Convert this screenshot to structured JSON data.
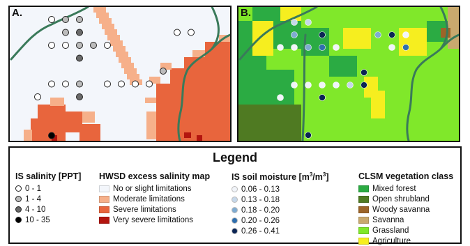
{
  "panel_a": {
    "label": "A.",
    "background_color": "#f3f6fb",
    "river_color": "#3a7a5a",
    "salinity_points": [
      {
        "col": 0,
        "row": 0,
        "class": 0
      },
      {
        "col": 1,
        "row": 0,
        "class": 1
      },
      {
        "col": 2,
        "row": 0,
        "class": 1
      },
      {
        "col": 1,
        "row": 1,
        "class": 1
      },
      {
        "col": 2,
        "row": 1,
        "class": 2
      },
      {
        "col": 0,
        "row": 2,
        "class": 0
      },
      {
        "col": 1,
        "row": 2,
        "class": 0
      },
      {
        "col": 2,
        "row": 2,
        "class": 1
      },
      {
        "col": 3,
        "row": 2,
        "class": 1
      },
      {
        "col": 4,
        "row": 2,
        "class": 0
      },
      {
        "col": 2,
        "row": 3,
        "class": 2
      },
      {
        "col": 0,
        "row": 5,
        "class": 0
      },
      {
        "col": 1,
        "row": 5,
        "class": 0
      },
      {
        "col": 2,
        "row": 5,
        "class": 1
      },
      {
        "col": 4,
        "row": 5,
        "class": 0
      },
      {
        "col": 5,
        "row": 5,
        "class": 0
      },
      {
        "col": 6,
        "row": 5,
        "class": 0
      },
      {
        "col": 7,
        "row": 5,
        "class": 0
      },
      {
        "col": 8,
        "row": 4,
        "class": 1
      },
      {
        "col": 9,
        "row": 1,
        "class": 0
      },
      {
        "col": 10,
        "row": 1,
        "class": 0
      },
      {
        "col": -1,
        "row": 6,
        "class": 0
      },
      {
        "col": 2,
        "row": 6,
        "class": 2
      },
      {
        "col": 0,
        "row": 9,
        "class": 3
      }
    ]
  },
  "panel_b": {
    "label": "B.",
    "moisture_points": [
      {
        "col": 1,
        "row": 0,
        "class": 1
      },
      {
        "col": 2,
        "row": 0,
        "class": 1
      },
      {
        "col": 1,
        "row": 1,
        "class": 2
      },
      {
        "col": 3,
        "row": 1,
        "class": 4
      },
      {
        "col": 3,
        "row": 2,
        "class": 3
      },
      {
        "col": 4,
        "row": 2,
        "class": 0
      },
      {
        "col": 0,
        "row": 2,
        "class": 0
      },
      {
        "col": 1,
        "row": 2,
        "class": 0
      },
      {
        "col": 2,
        "row": 2,
        "class": 2
      },
      {
        "col": 7,
        "row": 1,
        "class": 2
      },
      {
        "col": 8,
        "row": 1,
        "class": 4
      },
      {
        "col": 9,
        "row": 1,
        "class": 0
      },
      {
        "col": 8,
        "row": 2,
        "class": 0
      },
      {
        "col": 9,
        "row": 2,
        "class": 3
      },
      {
        "col": 6,
        "row": 4,
        "class": 4
      },
      {
        "col": 1,
        "row": 5,
        "class": 0
      },
      {
        "col": 2,
        "row": 5,
        "class": 0
      },
      {
        "col": 3,
        "row": 5,
        "class": 0
      },
      {
        "col": 4,
        "row": 5,
        "class": 0
      },
      {
        "col": 5,
        "row": 5,
        "class": 1
      },
      {
        "col": 6,
        "row": 5,
        "class": 4
      },
      {
        "col": 0,
        "row": 6,
        "class": 0
      },
      {
        "col": 3,
        "row": 6,
        "class": 4
      },
      {
        "col": 2,
        "row": 9,
        "class": 4
      }
    ]
  },
  "legend": {
    "title": "Legend",
    "salinity": {
      "heading": "IS salinity [PPT]",
      "items": [
        {
          "label": "0 - 1",
          "color": "#ffffff"
        },
        {
          "label": "1 - 4",
          "color": "#bcbcbc"
        },
        {
          "label": "4 - 10",
          "color": "#6a6a6a"
        },
        {
          "label": "10 - 35",
          "color": "#000000"
        }
      ]
    },
    "hwsd": {
      "heading": "HWSD excess salinity map",
      "items": [
        {
          "label": "No or slight limitations",
          "color": "#f3f6fb"
        },
        {
          "label": "Moderate limitations",
          "color": "#f6b08a"
        },
        {
          "label": "Severe limitations",
          "color": "#e8653d"
        },
        {
          "label": "Very severe limitations",
          "color": "#b3150f"
        }
      ]
    },
    "moisture": {
      "heading_main": "IS soil moisture [m",
      "heading_sup1": "3",
      "heading_mid": "/m",
      "heading_sup2": "3",
      "heading_end": "]",
      "items": [
        {
          "label": "0.06 - 0.13",
          "color": "#f1f4f9"
        },
        {
          "label": "0.13 - 0.18",
          "color": "#c6d8ea"
        },
        {
          "label": "0.18 - 0.20",
          "color": "#7fabd1"
        },
        {
          "label": "0.20 - 0.26",
          "color": "#2f6fae"
        },
        {
          "label": "0.26 - 0.41",
          "color": "#0b2555"
        }
      ]
    },
    "vegetation": {
      "heading": "CLSM vegetation class",
      "items": [
        {
          "label": "Mixed forest",
          "color": "#2bab43"
        },
        {
          "label": "Open shrubland",
          "color": "#4f7a22"
        },
        {
          "label": "Woody savanna",
          "color": "#9c6428"
        },
        {
          "label": "Savanna",
          "color": "#c9a96e"
        },
        {
          "label": "Grassland",
          "color": "#80e82a"
        },
        {
          "label": "Agriculture",
          "color": "#f6ee1f"
        }
      ]
    }
  }
}
